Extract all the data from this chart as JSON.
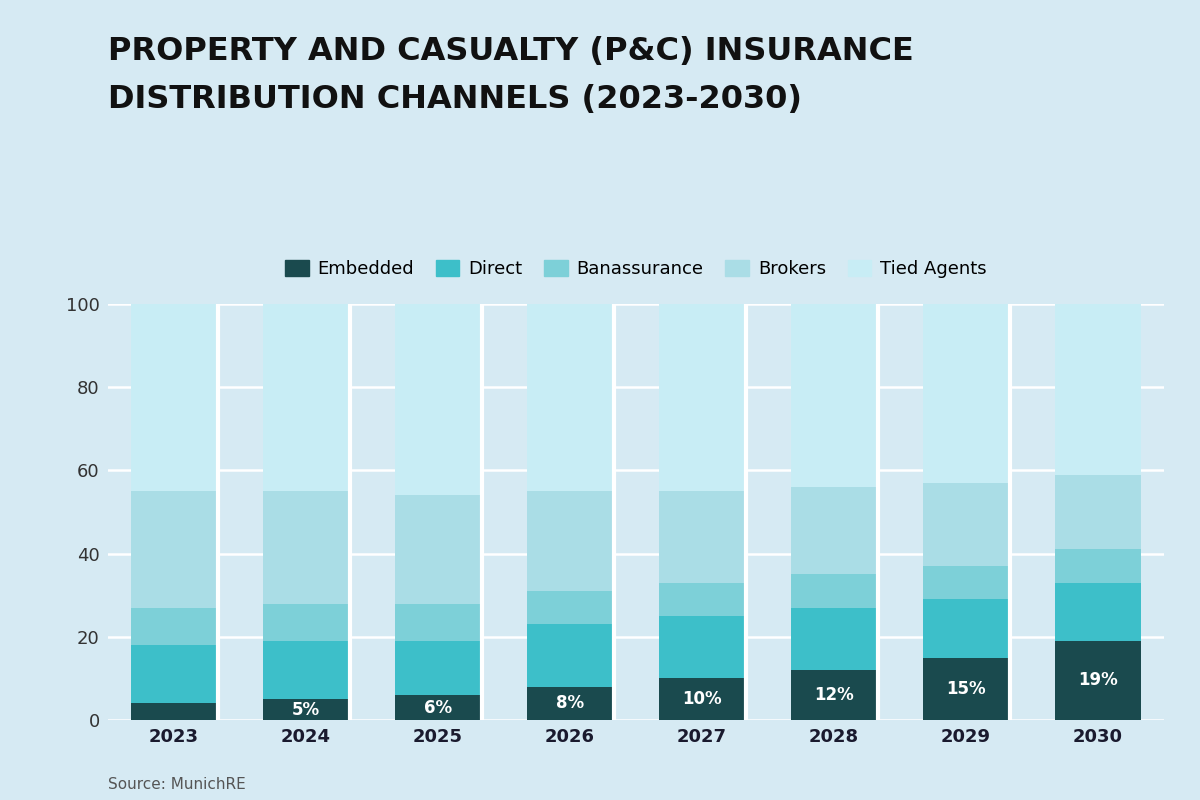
{
  "title_line1": "PROPERTY AND CASUALTY (P&C) INSURANCE",
  "title_line2": "DISTRIBUTION CHANNELS (2023-2030)",
  "years": [
    "2023",
    "2024",
    "2025",
    "2026",
    "2027",
    "2028",
    "2029",
    "2030"
  ],
  "segments": [
    "Embedded",
    "Direct",
    "Banassurance",
    "Brokers",
    "Tied Agents"
  ],
  "colors": [
    "#1a4a4e",
    "#3dbfc9",
    "#7dd0d8",
    "#aadde6",
    "#c8edf5"
  ],
  "data": {
    "Embedded": [
      4,
      5,
      6,
      8,
      10,
      12,
      15,
      19
    ],
    "Direct": [
      14,
      14,
      13,
      15,
      15,
      15,
      14,
      14
    ],
    "Banassurance": [
      9,
      9,
      9,
      8,
      8,
      8,
      8,
      8
    ],
    "Brokers": [
      28,
      27,
      26,
      24,
      22,
      21,
      20,
      18
    ],
    "Tied Agents": [
      45,
      45,
      46,
      45,
      45,
      44,
      43,
      41
    ]
  },
  "embedded_labels": [
    "",
    "5%",
    "6%",
    "8%",
    "10%",
    "12%",
    "15%",
    "19%"
  ],
  "ylim": [
    0,
    100
  ],
  "yticks": [
    0,
    20,
    40,
    60,
    80,
    100
  ],
  "background_color": "#d6eaf3",
  "plot_background": "#d6eaf3",
  "source_text": "Source: MunichRE",
  "bar_width": 0.65,
  "title_fontsize": 23,
  "tick_fontsize": 13,
  "legend_fontsize": 13,
  "source_fontsize": 11
}
